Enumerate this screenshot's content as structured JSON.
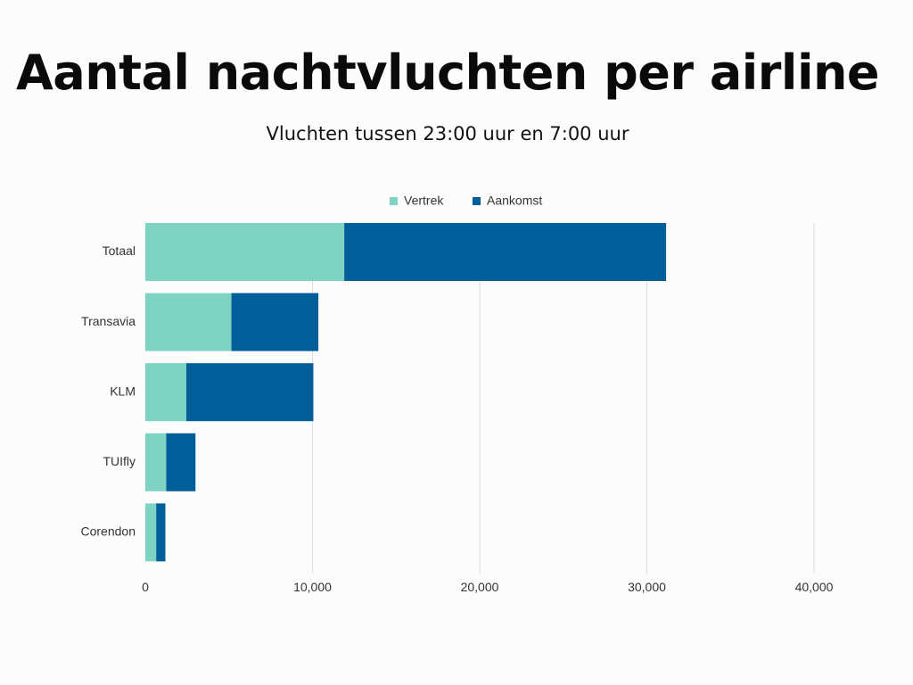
{
  "chart_data": {
    "type": "bar",
    "orientation": "horizontal",
    "stacked": true,
    "title": "Aantal nachtvluchten per airline",
    "subtitle": "Vluchten tussen 23:00 uur en 7:00 uur",
    "categories": [
      "Totaal",
      "Transavia",
      "KLM",
      "TUIfly",
      "Corendon"
    ],
    "series": [
      {
        "name": "Vertrek",
        "color": "#7fd3c3",
        "values": [
          11900,
          5150,
          2450,
          1250,
          650
        ]
      },
      {
        "name": "Aankomst",
        "color": "#005f99",
        "values": [
          19250,
          5200,
          7600,
          1750,
          550
        ]
      }
    ],
    "xlim": [
      0,
      40000
    ],
    "xticks": [
      0,
      10000,
      20000,
      30000,
      40000
    ],
    "xtick_labels": [
      "0",
      "10,000",
      "20,000",
      "30,000",
      "40,000"
    ],
    "xlabel": "",
    "ylabel": "",
    "grid": true,
    "legend_position": "top-center"
  }
}
